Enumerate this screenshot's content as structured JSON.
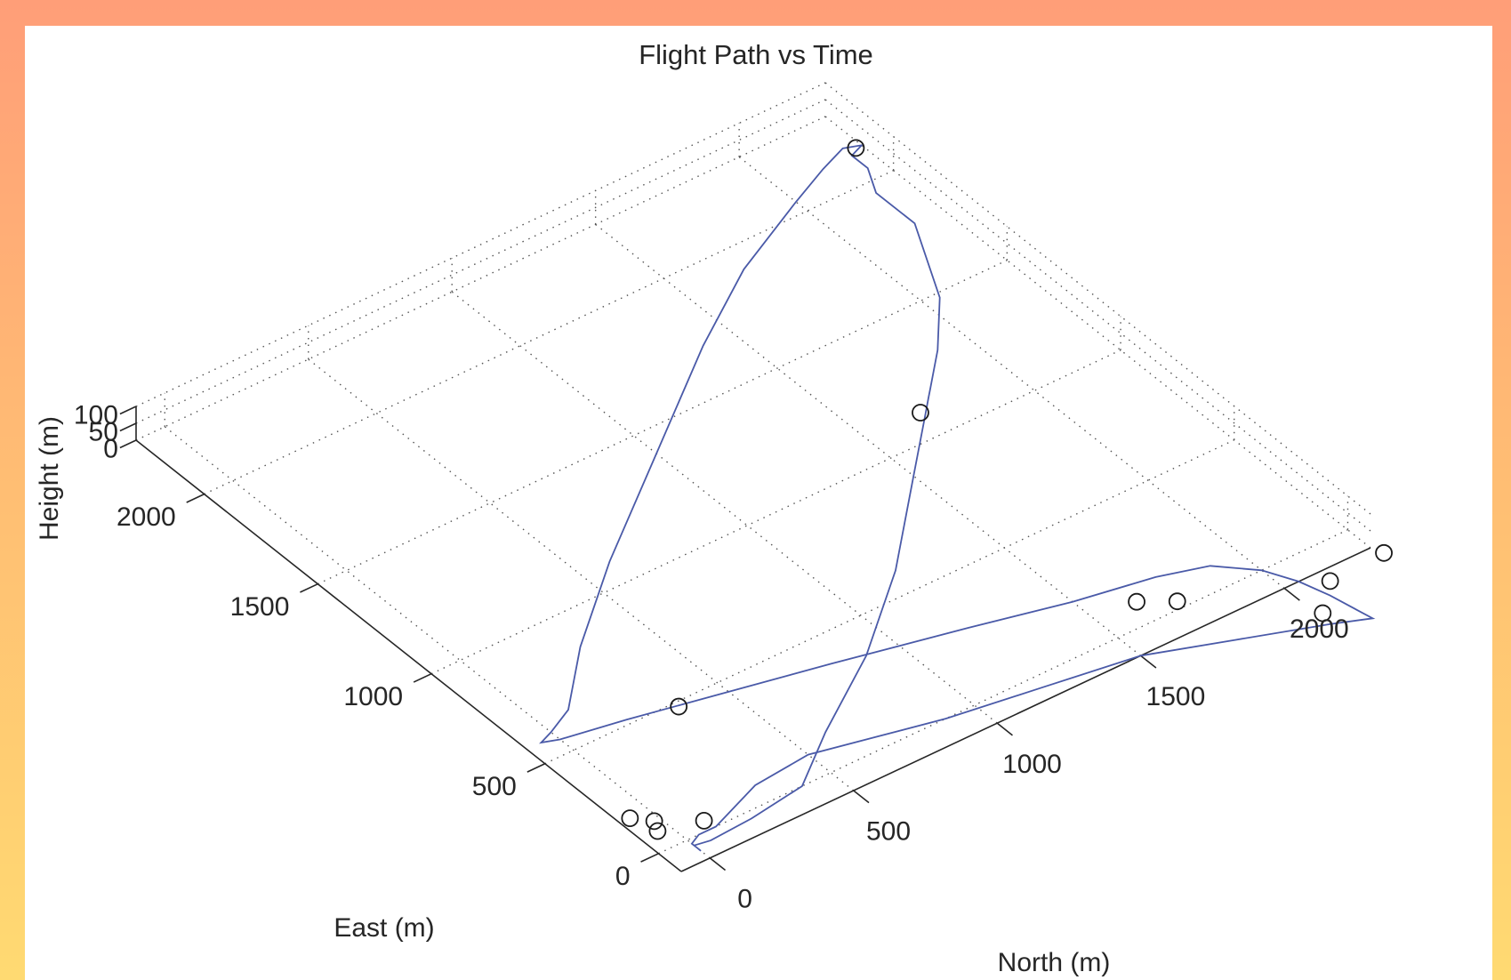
{
  "chart_data": {
    "type": "line",
    "projection": "3d",
    "title": "Flight Path vs Time",
    "xlabel": "North (m)",
    "ylabel": "East (m)",
    "zlabel": "Height (m)",
    "xlim": [
      -100,
      2300
    ],
    "ylim": [
      -100,
      2300
    ],
    "zlim": [
      0,
      100
    ],
    "xticks": [
      "0",
      "500",
      "1000",
      "1500",
      "2000"
    ],
    "yticks": [
      "0",
      "500",
      "1000",
      "1500",
      "2000"
    ],
    "zticks": [
      "0",
      "50",
      "100"
    ],
    "grid": true,
    "line_color": "#4a5aa8",
    "marker_color": "#1a1a1a",
    "series": [
      {
        "type": "line",
        "x": [
          0,
          50,
          200,
          400,
          600,
          900,
          1200,
          1500,
          1700,
          1750,
          1780,
          1900,
          2050,
          2200,
          2200,
          2250,
          2250,
          2300,
          2250,
          2150,
          2000,
          1700,
          1400,
          1000,
          600,
          300,
          100,
          0,
          -50,
          0,
          200,
          500,
          800,
          1200,
          1500,
          1750,
          1900,
          2000,
          2050,
          2080,
          2100,
          2110,
          2000,
          1750,
          1500,
          1200,
          900,
          700,
          500,
          300,
          200,
          100,
          40,
          0,
          0,
          0
        ],
        "y": [
          -30,
          -40,
          -30,
          0,
          150,
          350,
          600,
          900,
          1100,
          1150,
          1180,
          1300,
          1480,
          1780,
          1950,
          2050,
          2120,
          2140,
          2160,
          2120,
          2050,
          1900,
          1700,
          1400,
          1100,
          850,
          650,
          600,
          580,
          560,
          520,
          450,
          380,
          280,
          200,
          150,
          100,
          0,
          -100,
          -200,
          -300,
          -350,
          -300,
          -200,
          -100,
          -50,
          0,
          50,
          100,
          80,
          40,
          0,
          0,
          -20,
          -40,
          -60
        ],
        "z": [
          0,
          0,
          0,
          0,
          0,
          0,
          0,
          0,
          0,
          0,
          0,
          0,
          0,
          0,
          0,
          0,
          0,
          0,
          0,
          0,
          0,
          0,
          0,
          0,
          0,
          0,
          0,
          0,
          0,
          0,
          0,
          0,
          0,
          0,
          0,
          0,
          0,
          0,
          0,
          0,
          0,
          0,
          0,
          0,
          0,
          0,
          0,
          0,
          0,
          0,
          0,
          0,
          0,
          0,
          0,
          0
        ]
      },
      {
        "type": "markers",
        "x": [
          2280,
          1690,
          90,
          -20,
          -65,
          -40,
          350,
          1730,
          1640,
          2015,
          2120,
          2315
        ],
        "y": [
          2140,
          1110,
          40,
          120,
          170,
          80,
          480,
          30,
          95,
          -250,
          -150,
          -140
        ],
        "z": [
          0,
          0,
          0,
          0,
          0,
          0,
          0,
          0,
          0,
          0,
          0,
          0
        ]
      }
    ]
  }
}
